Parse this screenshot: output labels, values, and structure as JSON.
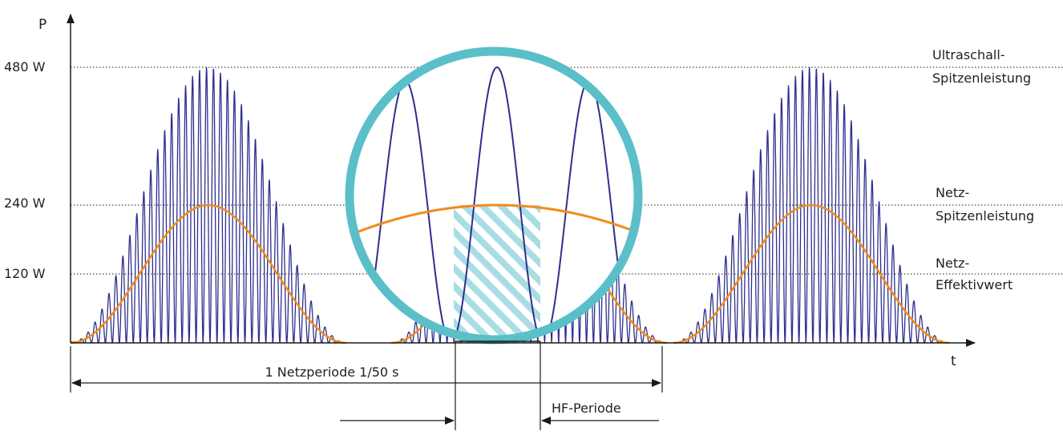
{
  "axes": {
    "y_label": "P",
    "x_label": "t"
  },
  "levels": [
    {
      "id": "ultrasound-peak",
      "value": 480,
      "tick_label": "480 W",
      "right_label_lines": [
        "Ultraschall-",
        "Spitzenleistung"
      ]
    },
    {
      "id": "grid-peak",
      "value": 240,
      "tick_label": "240 W",
      "right_label_lines": [
        "Netz-",
        "Spitzenleistung"
      ]
    },
    {
      "id": "grid-rms",
      "value": 120,
      "tick_label": "120 W",
      "right_label_lines": [
        "Netz-",
        "Effektivwert"
      ]
    }
  ],
  "dimensions": {
    "grid_period_label": "1 Netzperiode 1/50 s",
    "hf_period_label": "HF-Periode"
  },
  "colors": {
    "hf_wave": "#2e2f8e",
    "envelope": "#f08c1a",
    "zoom_ring": "#5bbfc9",
    "hatch": "#a9dde3",
    "axis": "#1a1a1a",
    "grid_line": "#1a1a1a"
  }
}
